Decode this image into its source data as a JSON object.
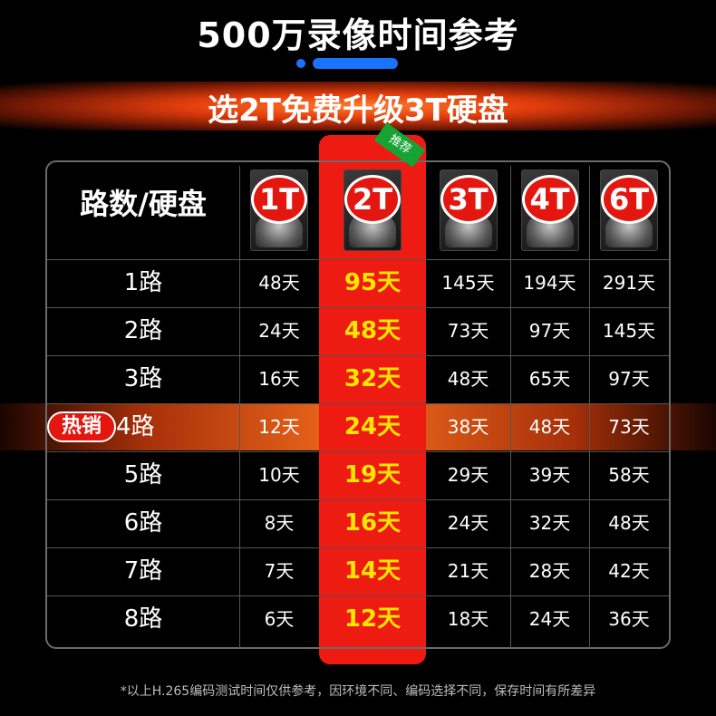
{
  "title": "500万录像时间参考",
  "banner": "选2T免费升级3T硬盘",
  "table": {
    "corner_label": "路数/硬盘",
    "recommend_tag": "推荐",
    "hot_tag": "热销",
    "columns": [
      "1T",
      "2T",
      "3T",
      "4T",
      "6T"
    ],
    "rows": [
      {
        "label": "1路",
        "values": [
          "48天",
          "95天",
          "145天",
          "194天",
          "291天"
        ]
      },
      {
        "label": "2路",
        "values": [
          "24天",
          "48天",
          "73天",
          "97天",
          "145天"
        ]
      },
      {
        "label": "3路",
        "values": [
          "16天",
          "32天",
          "48天",
          "65天",
          "97天"
        ]
      },
      {
        "label": "4路",
        "values": [
          "12天",
          "24天",
          "38天",
          "48天",
          "73天"
        ]
      },
      {
        "label": "5路",
        "values": [
          "10天",
          "19天",
          "29天",
          "39天",
          "58天"
        ]
      },
      {
        "label": "6路",
        "values": [
          "8天",
          "16天",
          "24天",
          "32天",
          "48天"
        ]
      },
      {
        "label": "7路",
        "values": [
          "7天",
          "14天",
          "21天",
          "28天",
          "42天"
        ]
      },
      {
        "label": "8路",
        "values": [
          "6天",
          "12天",
          "18天",
          "24天",
          "36天"
        ]
      }
    ]
  },
  "footnote": "*以上H.265编码测试时间仅供参考，因环境不同、编码选择不同，保存时间有所差异",
  "colors": {
    "accent_red": "#e3170f",
    "highlight_text": "#ffe600",
    "pill_blue": "#1a73ff",
    "recommend_green": "#16a334"
  },
  "icons": [
    "hard-disk-icon"
  ]
}
